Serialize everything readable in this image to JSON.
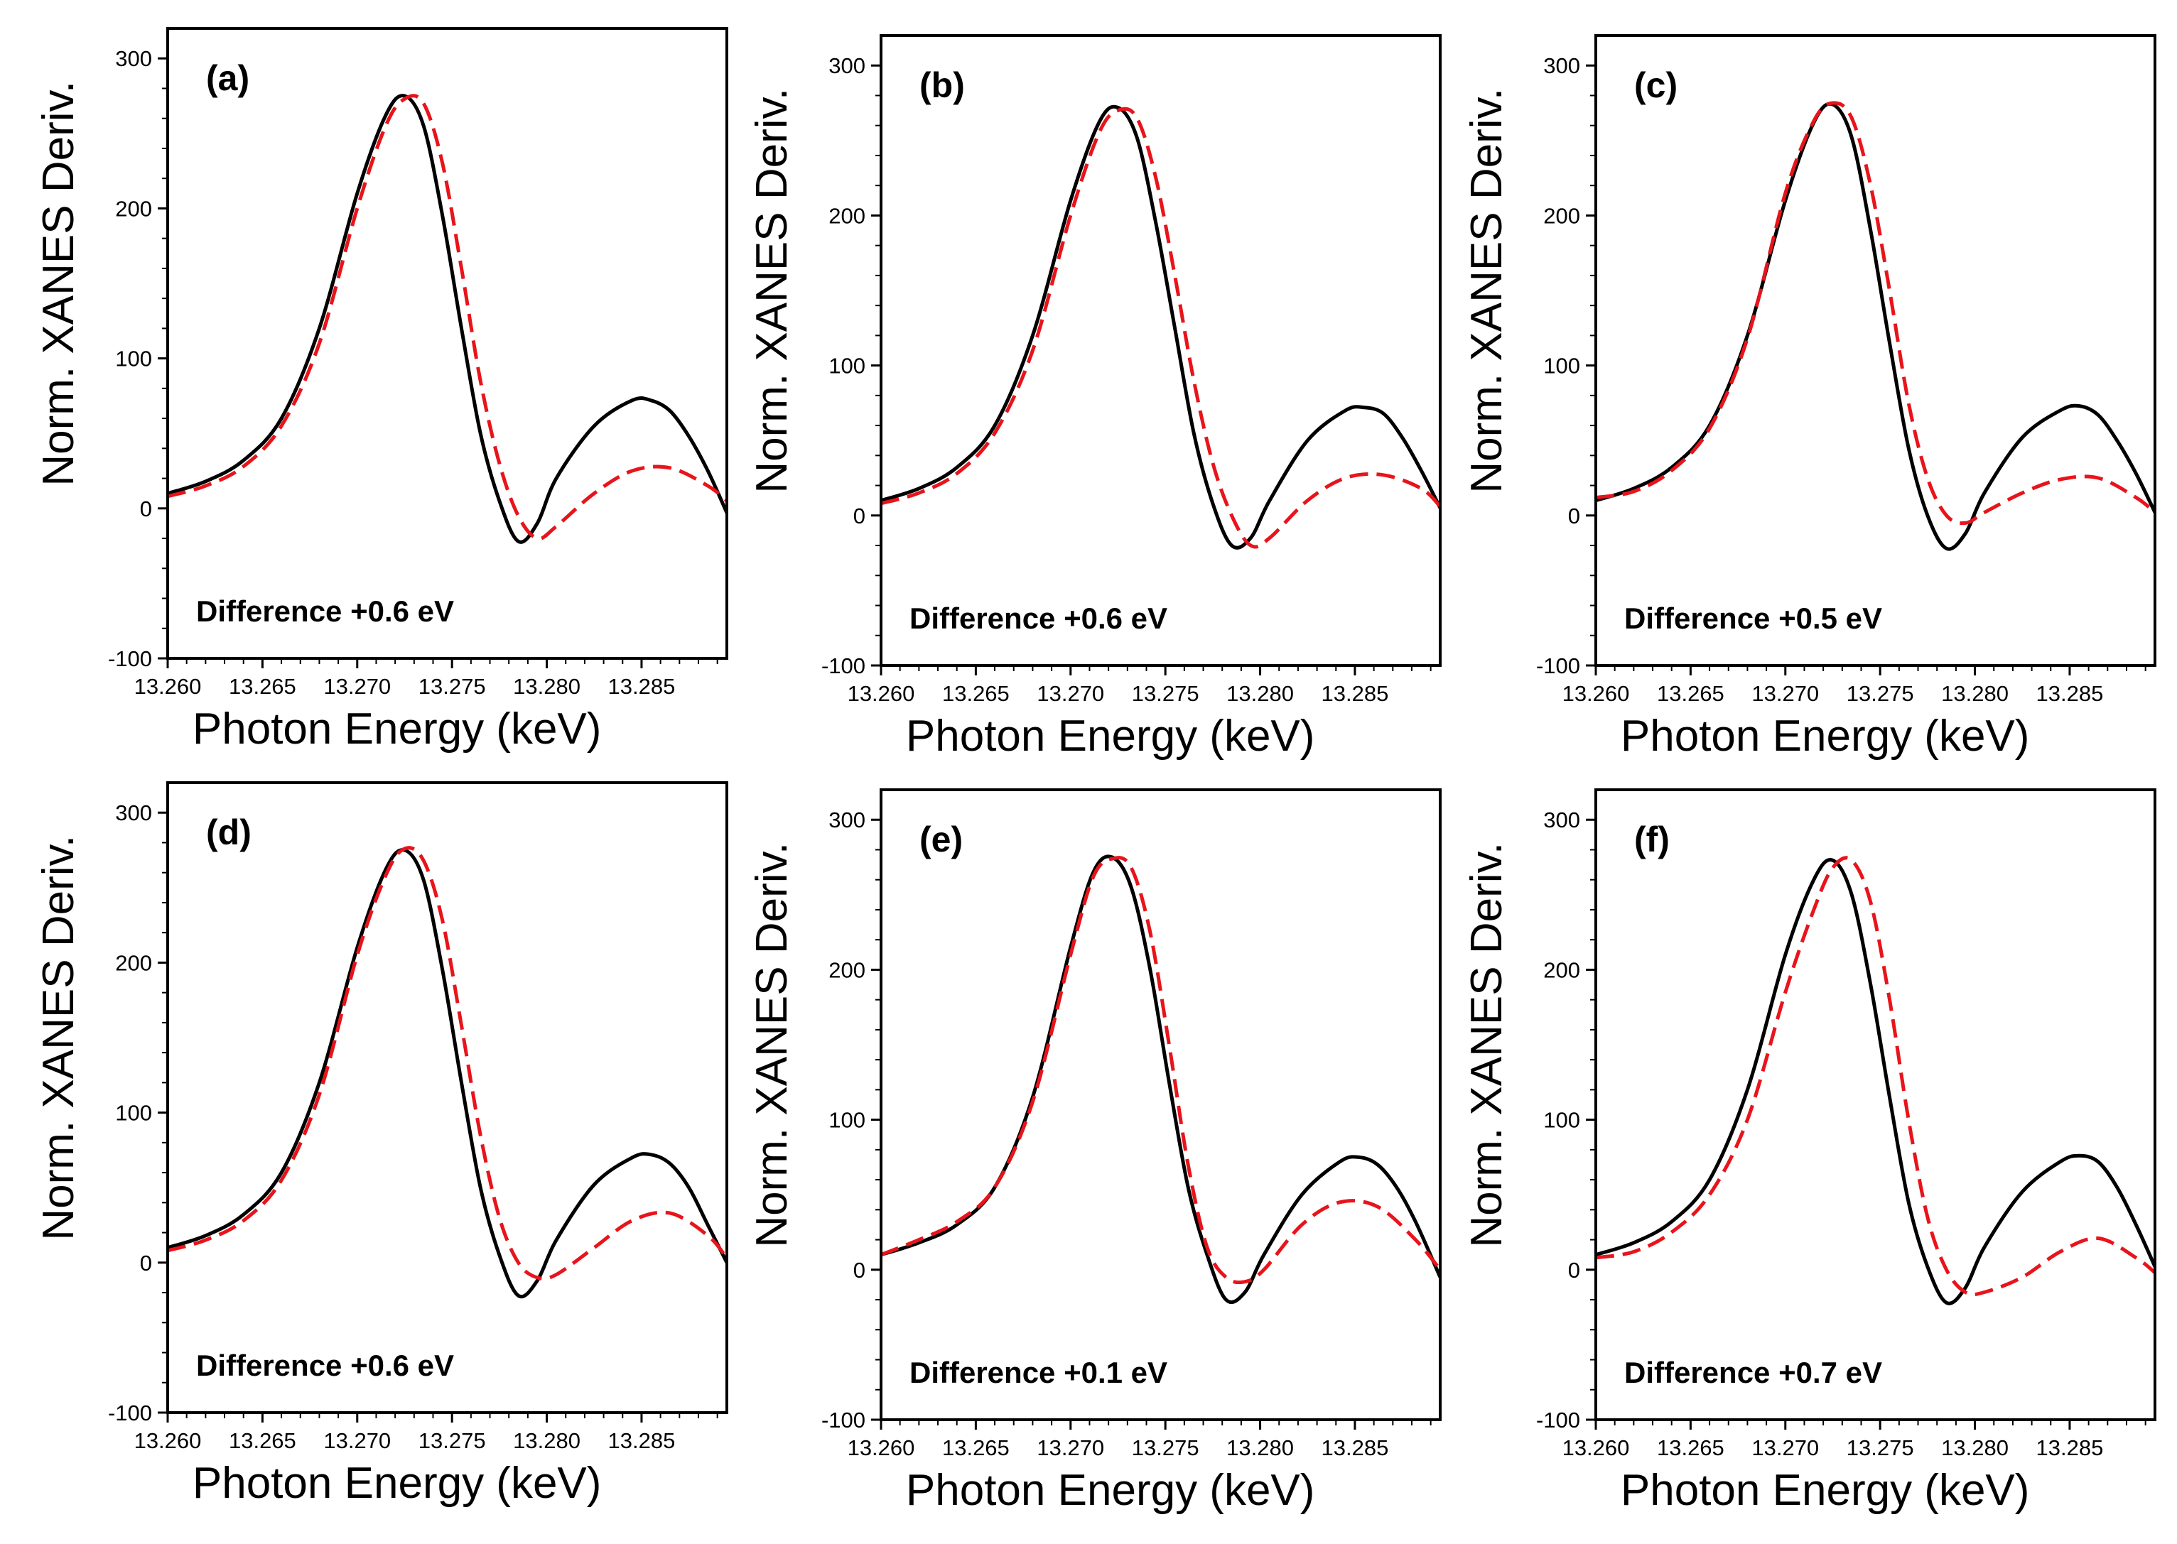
{
  "chart_data": [
    {
      "type": "line",
      "panel_label": "(a)",
      "annotation": "Difference +0.6 eV",
      "xlabel": "Photon Energy (keV)",
      "ylabel": "Norm. XANES Deriv.",
      "xlim": [
        13.26,
        13.2895
      ],
      "ylim": [
        -100,
        320
      ],
      "xticks": [
        "13.260",
        "13.265",
        "13.270",
        "13.275",
        "13.280",
        "13.285"
      ],
      "yticks": [
        "-100",
        "0",
        "100",
        "200",
        "300"
      ],
      "series": [
        {
          "name": "solid",
          "style": "solid",
          "color": "#000000",
          "x": [
            13.26,
            13.262,
            13.264,
            13.266,
            13.268,
            13.27,
            13.2715,
            13.2725,
            13.2735,
            13.2745,
            13.2755,
            13.2765,
            13.2775,
            13.2785,
            13.2795,
            13.2805,
            13.2825,
            13.2845,
            13.2855,
            13.2865,
            13.2875,
            13.2885,
            13.2895
          ],
          "y": [
            10,
            18,
            32,
            60,
            120,
            210,
            262,
            275,
            255,
            195,
            120,
            50,
            5,
            -22,
            -10,
            20,
            55,
            72,
            72,
            65,
            48,
            25,
            -3
          ]
        },
        {
          "name": "dashed",
          "style": "dashed",
          "color": "#e8141b",
          "x": [
            13.26,
            13.262,
            13.264,
            13.266,
            13.268,
            13.27,
            13.2715,
            13.2725,
            13.2735,
            13.2745,
            13.2755,
            13.2765,
            13.2775,
            13.2785,
            13.2795,
            13.2805,
            13.2825,
            13.2845,
            13.2865,
            13.2885,
            13.2895
          ],
          "y": [
            8,
            15,
            28,
            55,
            110,
            200,
            255,
            273,
            270,
            230,
            160,
            85,
            30,
            -5,
            -20,
            -12,
            10,
            25,
            27,
            15,
            5
          ]
        }
      ]
    },
    {
      "type": "line",
      "panel_label": "(b)",
      "annotation": "Difference +0.6 eV",
      "xlabel": "Photon Energy (keV)",
      "ylabel": "Norm. XANES Deriv.",
      "xlim": [
        13.26,
        13.2895
      ],
      "ylim": [
        -100,
        320
      ],
      "xticks": [
        "13.260",
        "13.265",
        "13.270",
        "13.275",
        "13.280",
        "13.285"
      ],
      "yticks": [
        "-100",
        "0",
        "100",
        "200",
        "300"
      ],
      "series": [
        {
          "name": "solid",
          "style": "solid",
          "color": "#000000",
          "x": [
            13.26,
            13.262,
            13.264,
            13.266,
            13.268,
            13.27,
            13.2715,
            13.2725,
            13.2735,
            13.2745,
            13.2755,
            13.2765,
            13.2775,
            13.2785,
            13.2795,
            13.2805,
            13.2825,
            13.2845,
            13.2855,
            13.2865,
            13.2875,
            13.2885,
            13.2895
          ],
          "y": [
            10,
            18,
            32,
            60,
            120,
            210,
            262,
            272,
            252,
            195,
            125,
            55,
            8,
            -20,
            -15,
            10,
            50,
            70,
            72,
            68,
            52,
            30,
            5
          ]
        },
        {
          "name": "dashed",
          "style": "dashed",
          "color": "#e8141b",
          "x": [
            13.26,
            13.262,
            13.264,
            13.266,
            13.268,
            13.27,
            13.2715,
            13.2725,
            13.2735,
            13.2745,
            13.2755,
            13.2765,
            13.2775,
            13.2785,
            13.2795,
            13.2805,
            13.2825,
            13.2845,
            13.2865,
            13.2885,
            13.2895
          ],
          "y": [
            8,
            15,
            28,
            55,
            110,
            200,
            255,
            270,
            265,
            225,
            160,
            90,
            35,
            0,
            -20,
            -15,
            10,
            25,
            27,
            18,
            6
          ]
        }
      ]
    },
    {
      "type": "line",
      "panel_label": "(c)",
      "annotation": "Difference +0.5 eV",
      "xlabel": "Photon Energy (keV)",
      "ylabel": "Norm. XANES Deriv.",
      "xlim": [
        13.26,
        13.2895
      ],
      "ylim": [
        -100,
        320
      ],
      "xticks": [
        "13.260",
        "13.265",
        "13.270",
        "13.275",
        "13.280",
        "13.285"
      ],
      "yticks": [
        "-100",
        "0",
        "100",
        "200",
        "300"
      ],
      "series": [
        {
          "name": "solid",
          "style": "solid",
          "color": "#000000",
          "x": [
            13.26,
            13.262,
            13.264,
            13.266,
            13.268,
            13.27,
            13.2715,
            13.2725,
            13.2735,
            13.2745,
            13.2755,
            13.2765,
            13.2775,
            13.2785,
            13.2795,
            13.2805,
            13.2825,
            13.2845,
            13.2855,
            13.2865,
            13.2875,
            13.2885,
            13.2895
          ],
          "y": [
            10,
            18,
            32,
            60,
            120,
            210,
            262,
            274,
            252,
            190,
            115,
            45,
            0,
            -22,
            -12,
            15,
            52,
            70,
            73,
            67,
            50,
            28,
            2
          ]
        },
        {
          "name": "dashed",
          "style": "dashed",
          "color": "#e8141b",
          "x": [
            13.26,
            13.262,
            13.264,
            13.266,
            13.268,
            13.27,
            13.2715,
            13.2725,
            13.2735,
            13.2745,
            13.2755,
            13.2765,
            13.2775,
            13.2785,
            13.2795,
            13.2805,
            13.2825,
            13.2845,
            13.2865,
            13.2885,
            13.2895
          ],
          "y": [
            12,
            16,
            30,
            58,
            118,
            215,
            263,
            275,
            265,
            220,
            150,
            75,
            25,
            0,
            -5,
            2,
            15,
            24,
            25,
            12,
            2
          ]
        }
      ]
    },
    {
      "type": "line",
      "panel_label": "(d)",
      "annotation": "Difference +0.6 eV",
      "xlabel": "Photon Energy (keV)",
      "ylabel": "Norm. XANES Deriv.",
      "xlim": [
        13.26,
        13.2895
      ],
      "ylim": [
        -100,
        320
      ],
      "xticks": [
        "13.260",
        "13.265",
        "13.270",
        "13.275",
        "13.280",
        "13.285"
      ],
      "yticks": [
        "-100",
        "0",
        "100",
        "200",
        "300"
      ],
      "series": [
        {
          "name": "solid",
          "style": "solid",
          "color": "#000000",
          "x": [
            13.26,
            13.262,
            13.264,
            13.266,
            13.268,
            13.27,
            13.2715,
            13.2725,
            13.2735,
            13.2745,
            13.2755,
            13.2765,
            13.2775,
            13.2785,
            13.2795,
            13.2805,
            13.2825,
            13.2845,
            13.2855,
            13.2865,
            13.2875,
            13.2885,
            13.2895
          ],
          "y": [
            10,
            18,
            32,
            60,
            120,
            210,
            262,
            275,
            255,
            195,
            120,
            50,
            5,
            -22,
            -12,
            15,
            52,
            70,
            72,
            66,
            50,
            25,
            0
          ]
        },
        {
          "name": "dashed",
          "style": "dashed",
          "color": "#e8141b",
          "x": [
            13.26,
            13.262,
            13.264,
            13.266,
            13.268,
            13.27,
            13.2715,
            13.2725,
            13.2735,
            13.2745,
            13.2755,
            13.2765,
            13.2775,
            13.2785,
            13.2795,
            13.2805,
            13.2825,
            13.2845,
            13.2865,
            13.2885,
            13.2895
          ],
          "y": [
            8,
            15,
            28,
            55,
            112,
            205,
            258,
            276,
            268,
            228,
            158,
            85,
            30,
            0,
            -10,
            -8,
            10,
            28,
            33,
            18,
            3
          ]
        }
      ]
    },
    {
      "type": "line",
      "panel_label": "(e)",
      "annotation": "Difference +0.1 eV",
      "xlabel": "Photon Energy (keV)",
      "ylabel": "Norm. XANES Deriv.",
      "xlim": [
        13.26,
        13.2895
      ],
      "ylim": [
        -100,
        320
      ],
      "xticks": [
        "13.260",
        "13.265",
        "13.270",
        "13.275",
        "13.280",
        "13.285"
      ],
      "yticks": [
        "-100",
        "0",
        "100",
        "200",
        "300"
      ],
      "series": [
        {
          "name": "solid",
          "style": "solid",
          "color": "#000000",
          "x": [
            13.26,
            13.262,
            13.264,
            13.266,
            13.268,
            13.27,
            13.2712,
            13.2722,
            13.2732,
            13.2742,
            13.2752,
            13.2762,
            13.2772,
            13.2782,
            13.2792,
            13.2802,
            13.2822,
            13.2842,
            13.2852,
            13.2862,
            13.2872,
            13.2882,
            13.2895
          ],
          "y": [
            10,
            18,
            30,
            55,
            115,
            215,
            265,
            275,
            255,
            200,
            125,
            55,
            10,
            -20,
            -15,
            10,
            50,
            72,
            75,
            70,
            55,
            32,
            -5
          ]
        },
        {
          "name": "dashed",
          "style": "dashed",
          "color": "#e8141b",
          "x": [
            13.26,
            13.262,
            13.264,
            13.266,
            13.268,
            13.27,
            13.2712,
            13.2722,
            13.2732,
            13.2742,
            13.2752,
            13.2762,
            13.2772,
            13.2782,
            13.2792,
            13.2802,
            13.2822,
            13.2842,
            13.2862,
            13.2882,
            13.2895
          ],
          "y": [
            10,
            20,
            32,
            55,
            112,
            210,
            262,
            274,
            268,
            225,
            150,
            70,
            15,
            -5,
            -8,
            0,
            30,
            45,
            42,
            20,
            0
          ]
        }
      ]
    },
    {
      "type": "line",
      "panel_label": "(f)",
      "annotation": "Difference +0.7 eV",
      "xlabel": "Photon Energy (keV)",
      "ylabel": "Norm. XANES Deriv.",
      "xlim": [
        13.26,
        13.2895
      ],
      "ylim": [
        -100,
        320
      ],
      "xticks": [
        "13.260",
        "13.265",
        "13.270",
        "13.275",
        "13.280",
        "13.285"
      ],
      "yticks": [
        "-100",
        "0",
        "100",
        "200",
        "300"
      ],
      "series": [
        {
          "name": "solid",
          "style": "solid",
          "color": "#000000",
          "x": [
            13.26,
            13.262,
            13.264,
            13.266,
            13.268,
            13.27,
            13.2715,
            13.2725,
            13.2735,
            13.2745,
            13.2755,
            13.2765,
            13.2775,
            13.2785,
            13.2795,
            13.2805,
            13.2825,
            13.2845,
            13.2855,
            13.2865,
            13.2875,
            13.2885,
            13.2895
          ],
          "y": [
            10,
            18,
            32,
            60,
            120,
            210,
            260,
            273,
            250,
            190,
            115,
            45,
            2,
            -22,
            -12,
            15,
            52,
            72,
            76,
            72,
            55,
            30,
            2
          ]
        },
        {
          "name": "dashed",
          "style": "dashed",
          "color": "#e8141b",
          "x": [
            13.26,
            13.262,
            13.264,
            13.266,
            13.268,
            13.27,
            13.2715,
            13.2725,
            13.2735,
            13.2745,
            13.2755,
            13.2765,
            13.2775,
            13.2785,
            13.2795,
            13.2805,
            13.2825,
            13.2845,
            13.2865,
            13.2885,
            13.2895
          ],
          "y": [
            8,
            12,
            25,
            50,
            100,
            185,
            240,
            268,
            273,
            245,
            180,
            100,
            35,
            0,
            -15,
            -15,
            -5,
            12,
            21,
            8,
            -2
          ]
        }
      ]
    }
  ]
}
